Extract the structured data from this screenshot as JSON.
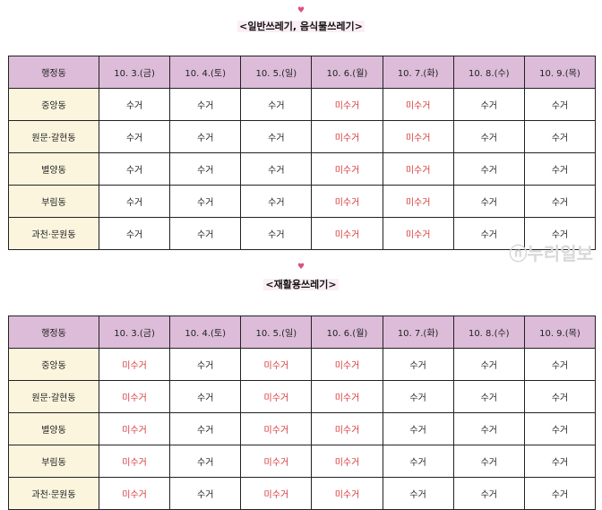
{
  "sections": [
    {
      "heart": "♥",
      "title": "<일반쓰레기, 음식물쓰레기>",
      "headers": [
        "행정동",
        "10. 3.(금)",
        "10. 4.(토)",
        "10. 5.(일)",
        "10. 6.(월)",
        "10. 7.(화)",
        "10. 8.(수)",
        "10. 9.(목)"
      ],
      "rows": [
        [
          "중앙동",
          "수거",
          "수거",
          "수거",
          "미수거",
          "미수거",
          "수거",
          "수거"
        ],
        [
          "원문·갈현동",
          "수거",
          "수거",
          "수거",
          "미수거",
          "미수거",
          "수거",
          "수거"
        ],
        [
          "별양동",
          "수거",
          "수거",
          "수거",
          "미수거",
          "미수거",
          "수거",
          "수거"
        ],
        [
          "부림동",
          "수거",
          "수거",
          "수거",
          "미수거",
          "미수거",
          "수거",
          "수거"
        ],
        [
          "과천·문원동",
          "수거",
          "수거",
          "수거",
          "미수거",
          "미수거",
          "수거",
          "수거"
        ]
      ]
    },
    {
      "heart": "♥",
      "title": "<재활용쓰레기>",
      "headers": [
        "행정동",
        "10. 3.(금)",
        "10. 4.(토)",
        "10. 5.(일)",
        "10. 6.(월)",
        "10. 7.(화)",
        "10. 8.(수)",
        "10. 9.(목)"
      ],
      "rows": [
        [
          "중앙동",
          "미수거",
          "수거",
          "미수거",
          "미수거",
          "수거",
          "수거",
          "수거"
        ],
        [
          "원문·갈현동",
          "미수거",
          "수거",
          "미수거",
          "미수거",
          "수거",
          "수거",
          "수거"
        ],
        [
          "별양동",
          "미수거",
          "수거",
          "미수거",
          "미수거",
          "수거",
          "수거",
          "수거"
        ],
        [
          "부림동",
          "미수거",
          "수거",
          "미수거",
          "미수거",
          "수거",
          "수거",
          "수거"
        ],
        [
          "과천·문원동",
          "미수거",
          "수거",
          "미수거",
          "미수거",
          "수거",
          "수거",
          "수거"
        ]
      ]
    }
  ],
  "colors": {
    "header_bg": "#dcbcd9",
    "dong_bg": "#fbf5de",
    "not_collected": "#d63838"
  },
  "watermark": "ⓝ누리일보"
}
